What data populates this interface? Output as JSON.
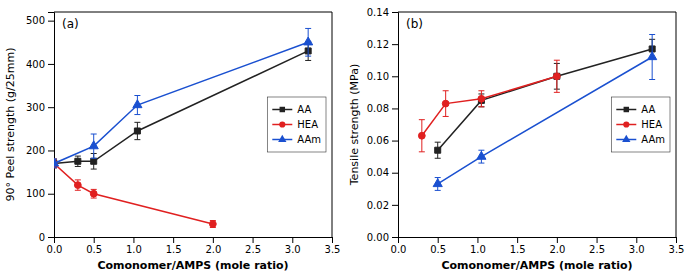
{
  "chart_data": [
    {
      "type": "line",
      "title": "(a)",
      "x_label": "Comonomer/AMPS (mole ratio)",
      "y_label": "90° Peel strength (g/25mm)",
      "xlim": [
        0.0,
        3.5
      ],
      "ylim": [
        0,
        520
      ],
      "xticks": [
        {
          "value": 0.0,
          "label": "0.0"
        },
        0.5,
        {
          "value": 1.0,
          "label": "1.0"
        },
        1.5,
        {
          "value": 2.0,
          "label": "2.0"
        },
        2.5,
        {
          "value": 3.0,
          "label": "3.0"
        },
        3.5
      ],
      "yticks": [
        0,
        100,
        200,
        300,
        400,
        500
      ],
      "legend": "right",
      "series": [
        {
          "name": "AA",
          "color": "#222222",
          "marker": "square",
          "x": [
            0.0,
            0.3,
            0.5,
            1.05,
            3.2
          ],
          "values": [
            170,
            175,
            175,
            245,
            430
          ],
          "errors": [
            10,
            12,
            18,
            20,
            22
          ]
        },
        {
          "name": "HEA",
          "color": "#e02020",
          "marker": "circle",
          "x": [
            0.0,
            0.3,
            0.5,
            2.0
          ],
          "values": [
            170,
            120,
            100,
            30
          ],
          "errors": [
            10,
            12,
            10,
            8
          ]
        },
        {
          "name": "AAm",
          "color": "#1a50d0",
          "marker": "triangle",
          "x": [
            0.0,
            0.5,
            1.05,
            3.2
          ],
          "values": [
            170,
            210,
            305,
            450
          ],
          "errors": [
            10,
            28,
            22,
            32
          ]
        }
      ]
    },
    {
      "type": "line",
      "title": "(b)",
      "x_label": "Comonomer/AMPS (mole ratio)",
      "y_label": "Tensile strength (MPa)",
      "xlim": [
        0.0,
        3.5
      ],
      "ylim": [
        0.0,
        0.14
      ],
      "xticks": [
        {
          "value": 0.0,
          "label": "0.0"
        },
        0.5,
        {
          "value": 1.0,
          "label": "1.0"
        },
        1.5,
        {
          "value": 2.0,
          "label": "2.0"
        },
        2.5,
        {
          "value": 3.0,
          "label": "3.0"
        },
        3.5
      ],
      "yticks": [
        {
          "value": 0.0,
          "label": "0.00"
        },
        {
          "value": 0.02,
          "label": "0.02"
        },
        {
          "value": 0.04,
          "label": "0.04"
        },
        {
          "value": 0.06,
          "label": "0.06"
        },
        {
          "value": 0.08,
          "label": "0.08"
        },
        {
          "value": 0.1,
          "label": "0.10"
        },
        {
          "value": 0.12,
          "label": "0.12"
        },
        {
          "value": 0.14,
          "label": "0.14"
        }
      ],
      "legend": "right",
      "series": [
        {
          "name": "AA",
          "color": "#222222",
          "marker": "square",
          "x": [
            0.5,
            1.05,
            2.0,
            3.2
          ],
          "values": [
            0.054,
            0.085,
            0.1,
            0.117
          ],
          "errors": [
            0.005,
            0.004,
            0.008,
            0.006
          ]
        },
        {
          "name": "HEA",
          "color": "#e02020",
          "marker": "circle",
          "x": [
            0.3,
            0.6,
            1.05,
            2.0
          ],
          "values": [
            0.063,
            0.083,
            0.086,
            0.1
          ],
          "errors": [
            0.01,
            0.008,
            0.005,
            0.01
          ]
        },
        {
          "name": "AAm",
          "color": "#1a50d0",
          "marker": "triangle",
          "x": [
            0.5,
            1.05,
            3.2
          ],
          "values": [
            0.033,
            0.05,
            0.112
          ],
          "errors": [
            0.004,
            0.004,
            0.014
          ]
        }
      ]
    }
  ]
}
